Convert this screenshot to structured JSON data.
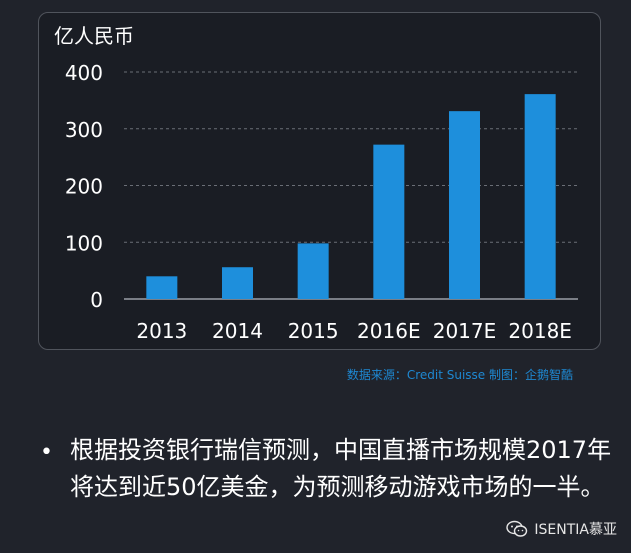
{
  "chart_data": {
    "type": "bar",
    "unit_label": "亿人民币",
    "categories": [
      "2013",
      "2014",
      "2015",
      "2016E",
      "2017E",
      "2018E"
    ],
    "values": [
      40,
      56,
      98,
      272,
      331,
      361
    ],
    "ylim": [
      0,
      400
    ],
    "yticks": [
      0,
      100,
      200,
      300,
      400
    ],
    "grid": true,
    "bar_color": "#1e8fdc"
  },
  "source_note": "数据来源：Credit Suisse 制图：企鹅智酷",
  "bullet_symbol": "•",
  "bullet_text": "根据投资银行瑞信预测，中国直播市场规模2017年将达到近50亿美金，为预测移动游戏市场的一半。",
  "watermark": {
    "icon": "wechat-icon",
    "text": "ISENTIA慕亚"
  }
}
